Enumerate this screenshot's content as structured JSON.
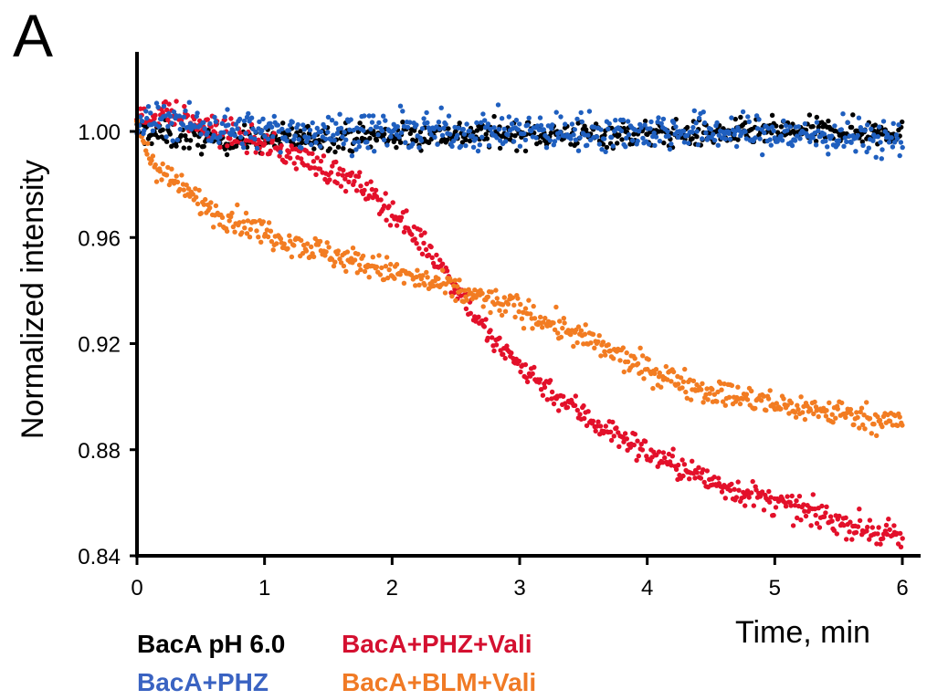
{
  "panel_label": "A",
  "chart_data": {
    "type": "scatter",
    "title": "",
    "xlabel": "Time, min",
    "ylabel": "Normalized intensity",
    "xlim": [
      0,
      6
    ],
    "ylim": [
      0.84,
      1.0
    ],
    "yaxis_top": 1.03,
    "xticks": [
      0,
      1,
      2,
      3,
      4,
      5,
      6
    ],
    "yticks": [
      0.84,
      0.88,
      0.92,
      0.96,
      1.0
    ],
    "xtick_labels": [
      "0",
      "1",
      "2",
      "3",
      "4",
      "5",
      "6"
    ],
    "ytick_labels": [
      "0.84",
      "0.88",
      "0.92",
      "0.96",
      "1.00"
    ],
    "grid": false,
    "legend_position": "bottom-left",
    "series": [
      {
        "name": "BacA pH 6.0",
        "color": "#000000",
        "noise": 0.0025,
        "x": [
          0,
          0.5,
          1,
          1.5,
          2,
          2.5,
          3,
          3.5,
          4,
          4.5,
          5,
          5.5,
          6
        ],
        "y": [
          1.0,
          0.997,
          0.997,
          0.998,
          0.998,
          0.999,
          0.999,
          0.999,
          0.999,
          0.999,
          1.0,
          1.0,
          1.0
        ]
      },
      {
        "name": "BacA+PHZ",
        "color": "#1f5fbf",
        "noise": 0.0035,
        "x": [
          0,
          0.2,
          0.5,
          1,
          1.5,
          2,
          2.5,
          3,
          3.5,
          4,
          4.5,
          5,
          5.5,
          6
        ],
        "y": [
          1.002,
          1.005,
          1.002,
          1.0,
          1.0,
          1.0,
          1.0,
          1.0,
          1.0,
          1.0,
          1.0,
          0.999,
          0.998,
          0.997
        ]
      },
      {
        "name": "BacA+PHZ+Vali",
        "color": "#e3102a",
        "noise": 0.0025,
        "x": [
          0,
          0.2,
          0.5,
          1,
          1.4,
          1.8,
          2,
          2.3,
          2.6,
          2.8,
          3,
          3.3,
          3.6,
          4,
          4.5,
          5,
          5.5,
          6
        ],
        "y": [
          1.003,
          1.008,
          1.002,
          0.995,
          0.988,
          0.978,
          0.97,
          0.955,
          0.935,
          0.92,
          0.912,
          0.9,
          0.89,
          0.879,
          0.868,
          0.86,
          0.853,
          0.846
        ]
      },
      {
        "name": "BacA+BLM+Vali",
        "color": "#f27c22",
        "noise": 0.0025,
        "x": [
          0,
          0.1,
          0.3,
          0.6,
          1,
          1.5,
          2,
          2.5,
          3,
          3.5,
          4,
          4.5,
          5,
          5.5,
          6
        ],
        "y": [
          1.003,
          0.99,
          0.98,
          0.97,
          0.962,
          0.954,
          0.947,
          0.94,
          0.933,
          0.922,
          0.91,
          0.902,
          0.897,
          0.894,
          0.89
        ]
      }
    ]
  },
  "legend": {
    "items": [
      {
        "label": "BacA pH 6.0",
        "color": "#000000"
      },
      {
        "label": "BacA+PHZ+Vali",
        "color": "#d41030"
      },
      {
        "label": "BacA+PHZ",
        "color": "#3a63c2"
      },
      {
        "label": "BacA+BLM+Vali",
        "color": "#f07a25"
      }
    ]
  }
}
